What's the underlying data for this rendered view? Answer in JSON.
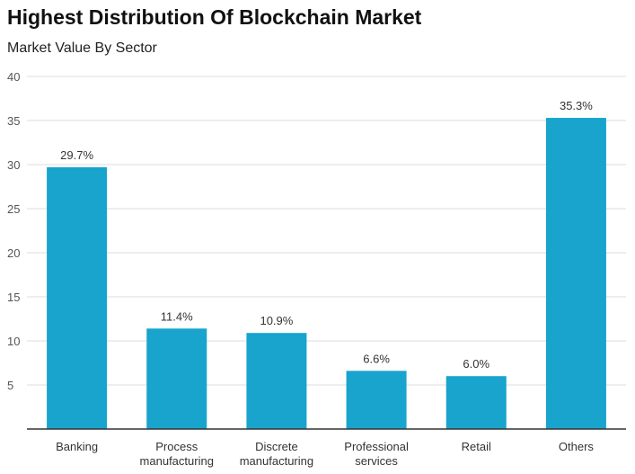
{
  "chart_data": {
    "type": "bar",
    "title": "Highest Distribution Of Blockchain Market",
    "subtitle": "Market Value By Sector",
    "categories": [
      [
        "Banking"
      ],
      [
        "Process",
        "manufacturing"
      ],
      [
        "Discrete",
        "manufacturing"
      ],
      [
        "Professional",
        "services"
      ],
      [
        "Retail"
      ],
      [
        "Others"
      ]
    ],
    "values": [
      29.7,
      11.4,
      10.9,
      6.6,
      6.0,
      35.3
    ],
    "data_labels": [
      "29.7%",
      "11.4%",
      "10.9%",
      "6.6%",
      "6.0%",
      "35.3%"
    ],
    "y_ticks": [
      5,
      10,
      15,
      20,
      25,
      30,
      35,
      40
    ],
    "ylim": [
      0,
      40
    ],
    "grid": true,
    "legend": "none",
    "colors": {
      "bar": "#18a4cc",
      "grid": "#dddddd",
      "axis": "#333333",
      "tick_label": "#555555",
      "data_label": "#333333"
    }
  }
}
